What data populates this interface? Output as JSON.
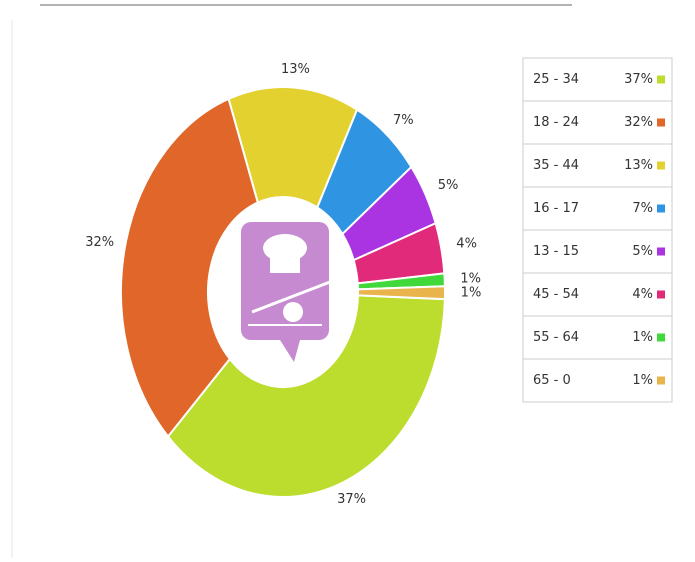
{
  "chart_data": {
    "type": "pie",
    "donut": true,
    "categories": [
      "25 - 34",
      "18 - 24",
      "35 - 44",
      "16 - 17",
      "13 - 15",
      "45 - 54",
      "55 - 64",
      "65 - 0"
    ],
    "values": [
      37,
      32,
      13,
      7,
      5,
      4,
      1,
      1
    ],
    "value_labels": [
      "37%",
      "32%",
      "13%",
      "7%",
      "5%",
      "4%",
      "1%",
      "1%"
    ],
    "colors": [
      "#bcdd2e",
      "#e0662a",
      "#e2d12e",
      "#2f95e2",
      "#aa34e2",
      "#e22a7a",
      "#40d83a",
      "#e9b44c"
    ]
  }
}
